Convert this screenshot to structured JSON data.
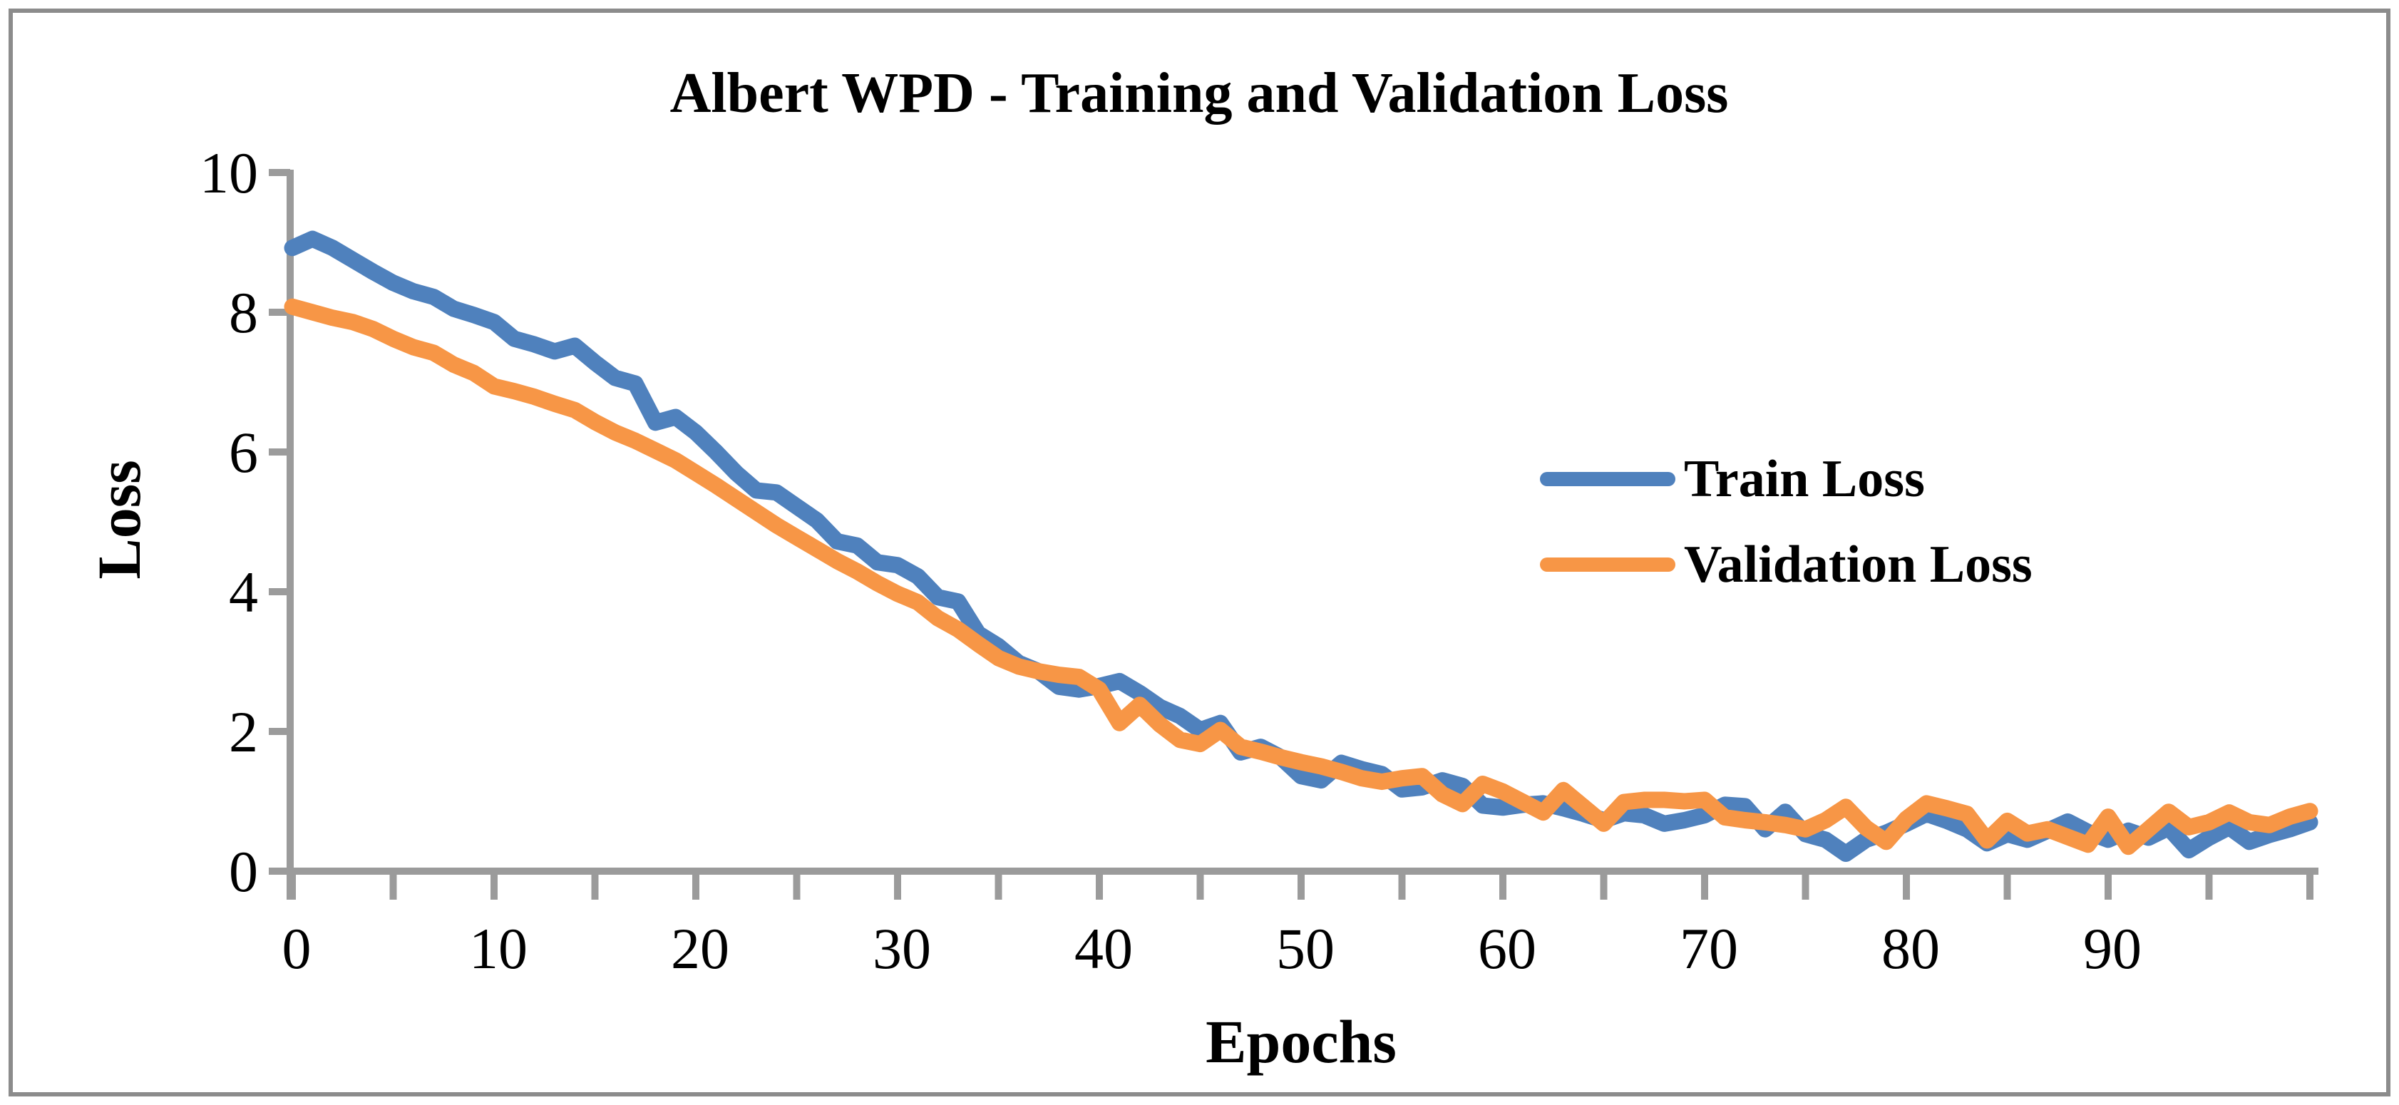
{
  "figure": {
    "border_color": "#8C8C8C",
    "background": "#FFFFFF"
  },
  "chart_data": {
    "type": "line",
    "title": "Albert WPD - Training and Validation Loss",
    "xlabel": "Epochs",
    "ylabel": "Loss",
    "x_start": 0,
    "x_step": 1,
    "xlim": [
      0,
      100
    ],
    "ylim": [
      0,
      10
    ],
    "y_tick_labels": [
      "0",
      "2",
      "4",
      "6",
      "8",
      "10"
    ],
    "y_tick_values": [
      0,
      2,
      4,
      6,
      8,
      10
    ],
    "x_tick_label_values": [
      0,
      10,
      20,
      30,
      40,
      50,
      60,
      70,
      80,
      90
    ],
    "x_minor_tick_step": 5,
    "grid": "off",
    "legend_position": "center-right",
    "axis_color": "#9B9B9B",
    "series": [
      {
        "name": "Train Loss",
        "color": "#4F81BD",
        "values": [
          8.92,
          9.05,
          8.92,
          8.75,
          8.58,
          8.42,
          8.3,
          8.22,
          8.05,
          7.96,
          7.86,
          7.62,
          7.54,
          7.44,
          7.52,
          7.28,
          7.06,
          6.98,
          6.42,
          6.5,
          6.28,
          6.0,
          5.7,
          5.45,
          5.42,
          5.22,
          5.02,
          4.72,
          4.66,
          4.42,
          4.38,
          4.22,
          3.92,
          3.86,
          3.4,
          3.22,
          2.98,
          2.86,
          2.64,
          2.6,
          2.65,
          2.72,
          2.55,
          2.35,
          2.22,
          2.02,
          2.12,
          1.7,
          1.78,
          1.63,
          1.36,
          1.3,
          1.55,
          1.46,
          1.39,
          1.17,
          1.2,
          1.3,
          1.22,
          0.94,
          0.91,
          0.95,
          0.97,
          0.9,
          0.82,
          0.73,
          0.83,
          0.8,
          0.68,
          0.73,
          0.8,
          0.95,
          0.93,
          0.6,
          0.85,
          0.53,
          0.45,
          0.25,
          0.45,
          0.55,
          0.68,
          0.82,
          0.72,
          0.6,
          0.4,
          0.53,
          0.45,
          0.58,
          0.71,
          0.56,
          0.45,
          0.58,
          0.48,
          0.62,
          0.3,
          0.48,
          0.63,
          0.42,
          0.52,
          0.6,
          0.7
        ]
      },
      {
        "name": "Validation Loss",
        "color": "#F79646",
        "values": [
          8.08,
          8.0,
          7.92,
          7.86,
          7.76,
          7.62,
          7.5,
          7.42,
          7.25,
          7.13,
          6.94,
          6.87,
          6.79,
          6.69,
          6.6,
          6.43,
          6.28,
          6.16,
          6.02,
          5.88,
          5.7,
          5.52,
          5.33,
          5.14,
          4.95,
          4.78,
          4.61,
          4.44,
          4.29,
          4.12,
          3.97,
          3.85,
          3.62,
          3.46,
          3.25,
          3.05,
          2.93,
          2.86,
          2.81,
          2.78,
          2.6,
          2.12,
          2.38,
          2.1,
          1.88,
          1.82,
          2.02,
          1.78,
          1.71,
          1.63,
          1.56,
          1.5,
          1.42,
          1.33,
          1.28,
          1.33,
          1.36,
          1.1,
          0.96,
          1.25,
          1.14,
          0.99,
          0.84,
          1.16,
          0.92,
          0.68,
          0.99,
          1.02,
          1.02,
          1.0,
          1.02,
          0.77,
          0.73,
          0.7,
          0.66,
          0.6,
          0.73,
          0.92,
          0.62,
          0.42,
          0.75,
          0.97,
          0.9,
          0.82,
          0.44,
          0.72,
          0.54,
          0.6,
          0.49,
          0.38,
          0.78,
          0.35,
          0.6,
          0.85,
          0.63,
          0.7,
          0.84,
          0.7,
          0.66,
          0.78,
          0.86
        ]
      }
    ],
    "legend": {
      "items": [
        {
          "label": "Train Loss",
          "color": "#4F81BD"
        },
        {
          "label": "Validation Loss",
          "color": "#F79646"
        }
      ]
    }
  }
}
